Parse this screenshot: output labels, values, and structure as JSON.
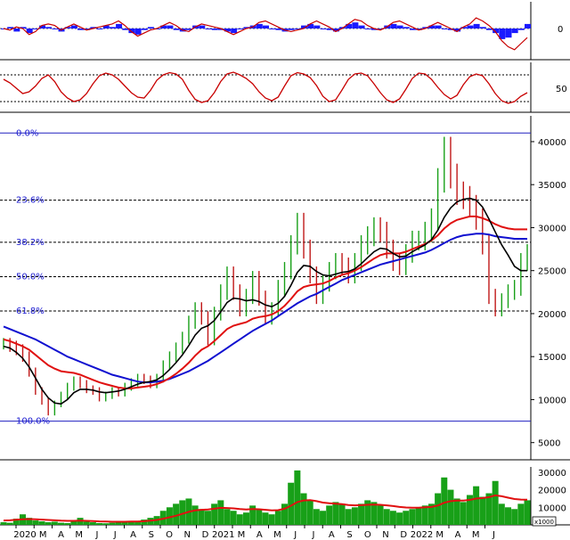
{
  "chart_data": {
    "type": "line",
    "colors": {
      "price_up": "#18a018",
      "price_down": "#c01818",
      "ma_short": "#000000",
      "ma_mid": "#e01010",
      "ma_long": "#1010d0",
      "fib_line": "#2020c0",
      "volume": "#18a018",
      "volume_ma": "#e01010",
      "macd_hist": "#1a1aff",
      "oscillator": "#c80000"
    },
    "x_axis": {
      "ticks": [
        "2020",
        "M",
        "A",
        "M",
        "J",
        "J",
        "A",
        "S",
        "O",
        "N",
        "D",
        "2021",
        "M",
        "A",
        "M",
        "J",
        "J",
        "A",
        "S",
        "O",
        "N",
        "D",
        "2022",
        "M",
        "A",
        "M",
        "J"
      ]
    },
    "macd_panel": {
      "yticks": [
        "0"
      ],
      "signal": [
        0,
        -1,
        1,
        0,
        -4,
        -2,
        2,
        3,
        2,
        -1,
        1,
        3,
        1,
        -1,
        0,
        1,
        2,
        3,
        5,
        2,
        -2,
        -5,
        -3,
        -1,
        0,
        2,
        4,
        2,
        -1,
        -2,
        1,
        3,
        2,
        1,
        0,
        -2,
        -4,
        -2,
        0,
        1,
        4,
        5,
        3,
        1,
        -1,
        -2,
        -1,
        0,
        3,
        5,
        3,
        1,
        -2,
        0,
        3,
        6,
        5,
        2,
        0,
        -1,
        1,
        4,
        5,
        3,
        1,
        -1,
        0,
        2,
        4,
        2,
        0,
        -2,
        1,
        3,
        7,
        5,
        2,
        -2,
        -8,
        -12,
        -14,
        -10,
        -6
      ],
      "histogram": [
        0,
        1,
        -2,
        1,
        -3,
        0,
        2,
        1,
        0,
        -2,
        1,
        2,
        -1,
        -1,
        1,
        0,
        2,
        1,
        3,
        -1,
        -3,
        -4,
        -1,
        1,
        0,
        2,
        2,
        -1,
        -2,
        -1,
        2,
        2,
        0,
        -1,
        -1,
        -2,
        -3,
        0,
        1,
        2,
        3,
        2,
        0,
        -1,
        -2,
        -1,
        0,
        2,
        3,
        2,
        0,
        -1,
        -2,
        1,
        3,
        4,
        2,
        0,
        -1,
        0,
        2,
        3,
        2,
        1,
        -1,
        -1,
        1,
        2,
        2,
        0,
        -1,
        -2,
        1,
        2,
        3,
        1,
        -1,
        -3,
        -7,
        -6,
        -3,
        -1,
        3
      ]
    },
    "oscillator_panel": {
      "yticks": [
        "50"
      ],
      "reference_levels": [
        20,
        80
      ],
      "values": [
        70,
        62,
        50,
        38,
        42,
        55,
        72,
        80,
        65,
        42,
        28,
        20,
        24,
        38,
        60,
        78,
        84,
        80,
        70,
        55,
        40,
        30,
        28,
        45,
        68,
        80,
        85,
        82,
        70,
        45,
        25,
        18,
        22,
        40,
        65,
        82,
        86,
        80,
        72,
        60,
        42,
        28,
        22,
        30,
        55,
        78,
        85,
        82,
        74,
        56,
        32,
        20,
        24,
        46,
        70,
        82,
        84,
        78,
        60,
        40,
        24,
        18,
        26,
        48,
        72,
        84,
        82,
        70,
        52,
        36,
        26,
        34,
        58,
        76,
        82,
        78,
        60,
        38,
        22,
        16,
        20,
        32,
        40
      ]
    },
    "price_panel": {
      "yticks": [
        "40000",
        "35000",
        "30000",
        "25000",
        "20000",
        "15000",
        "10000",
        "5000"
      ],
      "ylim": [
        3000,
        43000
      ],
      "fibonacci": [
        {
          "label": "0.0%",
          "value": 41000
        },
        {
          "label": "23.6%",
          "value": 33200
        },
        {
          "label": "38.2%",
          "value": 28300
        },
        {
          "label": "50.0%",
          "value": 24300
        },
        {
          "label": "61.8%",
          "value": 20300
        },
        {
          "label": "100.0%",
          "value": 7500
        }
      ],
      "close": [
        16500,
        16200,
        15800,
        15000,
        13200,
        11000,
        9800,
        8500,
        9500,
        10500,
        11500,
        12200,
        11800,
        11200,
        11000,
        10200,
        10500,
        11000,
        10800,
        11500,
        12000,
        12500,
        12300,
        11800,
        12500,
        14000,
        15000,
        16000,
        17200,
        19000,
        20500,
        19500,
        17000,
        20000,
        22500,
        24500,
        22500,
        20500,
        22000,
        24000,
        21800,
        19500,
        20500,
        23000,
        25000,
        28000,
        30500,
        27500,
        24500,
        22000,
        23500,
        25000,
        26000,
        25500,
        24500,
        26000,
        28000,
        29000,
        30000,
        29500,
        27500,
        26000,
        25500,
        27000,
        28500,
        28500,
        29500,
        31000,
        35500,
        39000,
        36000,
        34000,
        33500,
        32500,
        31000,
        28000,
        22000,
        20500,
        21500,
        22500,
        23000,
        26000,
        27000
      ],
      "ma_short": [
        16200,
        16000,
        15500,
        14800,
        13800,
        12500,
        11200,
        10200,
        9600,
        9500,
        10000,
        10800,
        11200,
        11200,
        11100,
        10900,
        10800,
        10900,
        11000,
        11200,
        11500,
        11800,
        12000,
        12100,
        12300,
        12800,
        13500,
        14300,
        15200,
        16300,
        17500,
        18300,
        18600,
        19200,
        20200,
        21300,
        21800,
        21700,
        21500,
        21600,
        21400,
        21000,
        20800,
        21200,
        22000,
        23300,
        24800,
        25600,
        25500,
        24900,
        24500,
        24400,
        24600,
        24800,
        24900,
        25200,
        25800,
        26500,
        27200,
        27600,
        27500,
        27000,
        26600,
        26700,
        27200,
        27600,
        28000,
        28600,
        29700,
        31200,
        32300,
        33000,
        33300,
        33400,
        33200,
        32400,
        31000,
        29500,
        28000,
        26800,
        25500,
        25000,
        25000
      ],
      "ma_mid": [
        17000,
        16800,
        16500,
        16200,
        15800,
        15200,
        14600,
        14000,
        13600,
        13300,
        13200,
        13100,
        12900,
        12600,
        12300,
        12000,
        11800,
        11600,
        11400,
        11300,
        11300,
        11400,
        11500,
        11600,
        11800,
        12100,
        12500,
        13000,
        13600,
        14300,
        15100,
        15800,
        16200,
        16800,
        17500,
        18200,
        18600,
        18800,
        19000,
        19400,
        19600,
        19700,
        19900,
        20300,
        20900,
        21700,
        22600,
        23100,
        23300,
        23400,
        23500,
        23800,
        24200,
        24500,
        24700,
        25000,
        25400,
        25900,
        26400,
        26800,
        27000,
        27000,
        27000,
        27200,
        27500,
        27800,
        28100,
        28500,
        29100,
        29900,
        30500,
        30900,
        31100,
        31300,
        31300,
        31100,
        30800,
        30400,
        30100,
        29900,
        29800,
        29800,
        29800
      ],
      "ma_long": [
        18500,
        18200,
        17900,
        17600,
        17300,
        17000,
        16600,
        16200,
        15800,
        15400,
        15000,
        14700,
        14400,
        14100,
        13800,
        13500,
        13200,
        12900,
        12700,
        12500,
        12300,
        12100,
        12000,
        12000,
        12100,
        12200,
        12400,
        12700,
        13000,
        13300,
        13700,
        14100,
        14500,
        15000,
        15500,
        16000,
        16500,
        17000,
        17500,
        18000,
        18400,
        18800,
        19200,
        19700,
        20200,
        20700,
        21200,
        21600,
        22000,
        22300,
        22700,
        23100,
        23500,
        23900,
        24200,
        24500,
        24800,
        25100,
        25400,
        25700,
        25900,
        26100,
        26300,
        26500,
        26700,
        26900,
        27100,
        27400,
        27800,
        28200,
        28600,
        28900,
        29100,
        29200,
        29300,
        29300,
        29200,
        29000,
        28900,
        28800,
        28700,
        28700,
        28700
      ]
    },
    "volume_panel": {
      "yticks": [
        "30000",
        "20000",
        "10000"
      ],
      "unit_label": "x1000",
      "ylim": [
        0,
        33000
      ],
      "values": [
        1500,
        1200,
        3500,
        6000,
        4000,
        2500,
        2000,
        1500,
        1800,
        1200,
        1000,
        2500,
        4000,
        1800,
        1500,
        1000,
        900,
        1200,
        1500,
        2000,
        1800,
        1500,
        3000,
        4000,
        5000,
        8000,
        10000,
        12000,
        14000,
        15000,
        11000,
        9000,
        8000,
        12000,
        14000,
        9000,
        8000,
        6000,
        7000,
        11000,
        9000,
        7000,
        6000,
        8000,
        12000,
        24000,
        31000,
        18000,
        14000,
        9000,
        8000,
        11000,
        13000,
        12000,
        9000,
        10000,
        12000,
        14000,
        13000,
        11000,
        9000,
        8000,
        7000,
        8000,
        9000,
        10000,
        11000,
        12000,
        18000,
        27000,
        20000,
        15000,
        13000,
        17000,
        22000,
        16000,
        18000,
        25000,
        12000,
        10000,
        9000,
        12000,
        14000
      ],
      "ma": [
        2500,
        2600,
        2900,
        3200,
        3300,
        3200,
        3000,
        2800,
        2600,
        2400,
        2300,
        2300,
        2400,
        2300,
        2200,
        2000,
        1900,
        1800,
        1800,
        1800,
        1900,
        1900,
        2100,
        2400,
        2800,
        3500,
        4300,
        5200,
        6300,
        7400,
        8200,
        8600,
        8800,
        9200,
        9700,
        9600,
        9400,
        9000,
        8800,
        9000,
        8900,
        8600,
        8300,
        8400,
        9200,
        10900,
        13000,
        13900,
        14100,
        13500,
        12700,
        12300,
        12100,
        11800,
        11300,
        11100,
        11200,
        11400,
        11500,
        11400,
        11100,
        10700,
        10200,
        9900,
        9800,
        9800,
        10000,
        10200,
        11000,
        12600,
        13500,
        13800,
        13800,
        14200,
        15000,
        15300,
        15800,
        16800,
        16300,
        15500,
        14700,
        14400,
        14300
      ]
    }
  }
}
